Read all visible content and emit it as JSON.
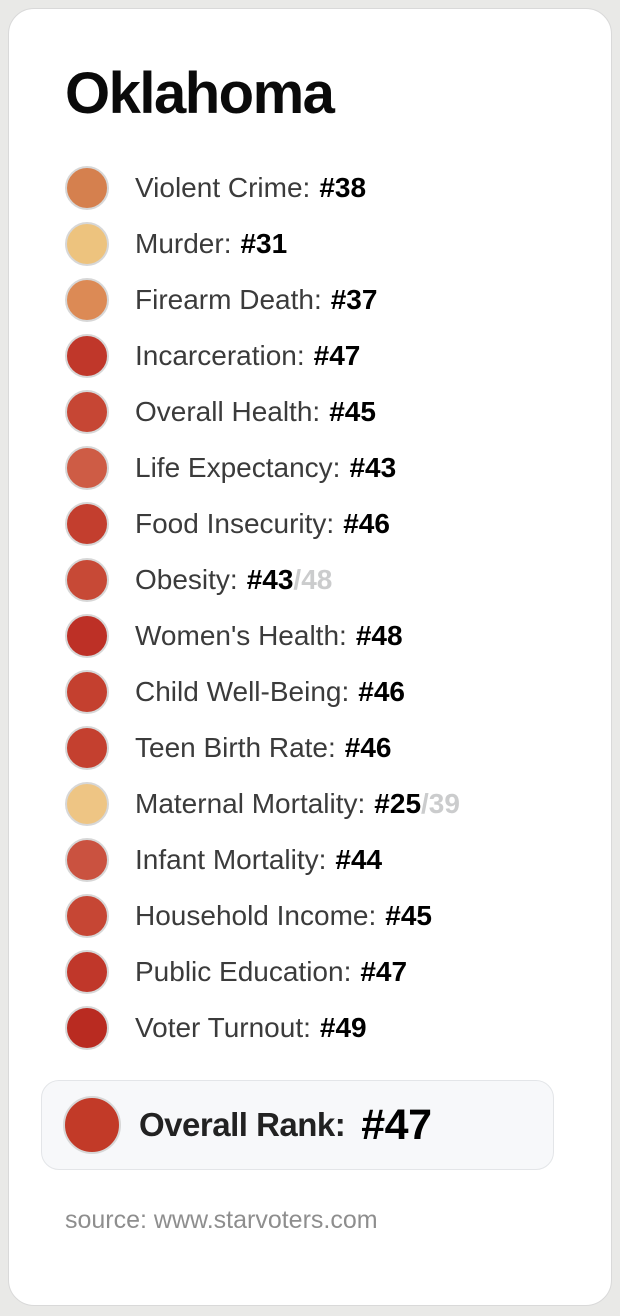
{
  "title": "Oklahoma",
  "stats": [
    {
      "label": "Violent Crime:",
      "rank": "#38",
      "color": "#d5804e"
    },
    {
      "label": "Murder:",
      "rank": "#31",
      "color": "#edc37e"
    },
    {
      "label": "Firearm Death:",
      "rank": "#37",
      "color": "#dc8a55"
    },
    {
      "label": "Incarceration:",
      "rank": "#47",
      "color": "#c0372a"
    },
    {
      "label": "Overall Health:",
      "rank": "#45",
      "color": "#c64634"
    },
    {
      "label": "Life Expectancy:",
      "rank": "#43",
      "color": "#ce5c45"
    },
    {
      "label": "Food Insecurity:",
      "rank": "#46",
      "color": "#c33e2e"
    },
    {
      "label": "Obesity:",
      "rank": "#43",
      "secondary": "/48",
      "color": "#c74936"
    },
    {
      "label": "Women's Health:",
      "rank": "#48",
      "color": "#bd3026"
    },
    {
      "label": "Child Well-Being:",
      "rank": "#46",
      "color": "#c4402f"
    },
    {
      "label": "Teen Birth Rate:",
      "rank": "#46",
      "color": "#c4402f"
    },
    {
      "label": "Maternal Mortality:",
      "rank": "#25",
      "secondary": "/39",
      "color": "#eec584"
    },
    {
      "label": "Infant Mortality:",
      "rank": "#44",
      "color": "#ca5240"
    },
    {
      "label": "Household Income:",
      "rank": "#45",
      "color": "#c64634"
    },
    {
      "label": "Public Education:",
      "rank": "#47",
      "color": "#c0372a"
    },
    {
      "label": "Voter Turnout:",
      "rank": "#49",
      "color": "#b92b21"
    }
  ],
  "overall": {
    "label": "Overall Rank:",
    "rank": "#47",
    "color": "#c23a28"
  },
  "source": "source: www.starvoters.com",
  "colors": {
    "page_background": "#e9e9e7",
    "card_background": "#ffffff",
    "overall_box_background": "#f7f8fa",
    "dot_ring": "#d7d7d7",
    "label_text": "#3b3b3b",
    "secondary_text": "#cbcccd",
    "source_text": "#8e8e8e"
  },
  "chart_data": {
    "type": "table",
    "title": "Oklahoma",
    "categories": [
      "Violent Crime",
      "Murder",
      "Firearm Death",
      "Incarceration",
      "Overall Health",
      "Life Expectancy",
      "Food Insecurity",
      "Obesity",
      "Women's Health",
      "Child Well-Being",
      "Teen Birth Rate",
      "Maternal Mortality",
      "Infant Mortality",
      "Household Income",
      "Public Education",
      "Voter Turnout"
    ],
    "values": [
      38,
      31,
      37,
      47,
      45,
      43,
      46,
      43,
      48,
      46,
      46,
      25,
      44,
      45,
      47,
      49
    ],
    "secondary_values": {
      "Obesity": 48,
      "Maternal Mortality": 39
    },
    "overall_rank": 47,
    "legend_note": "dot color encodes rank severity from tan (better) to dark red (worse)",
    "source": "source: www.starvoters.com"
  }
}
